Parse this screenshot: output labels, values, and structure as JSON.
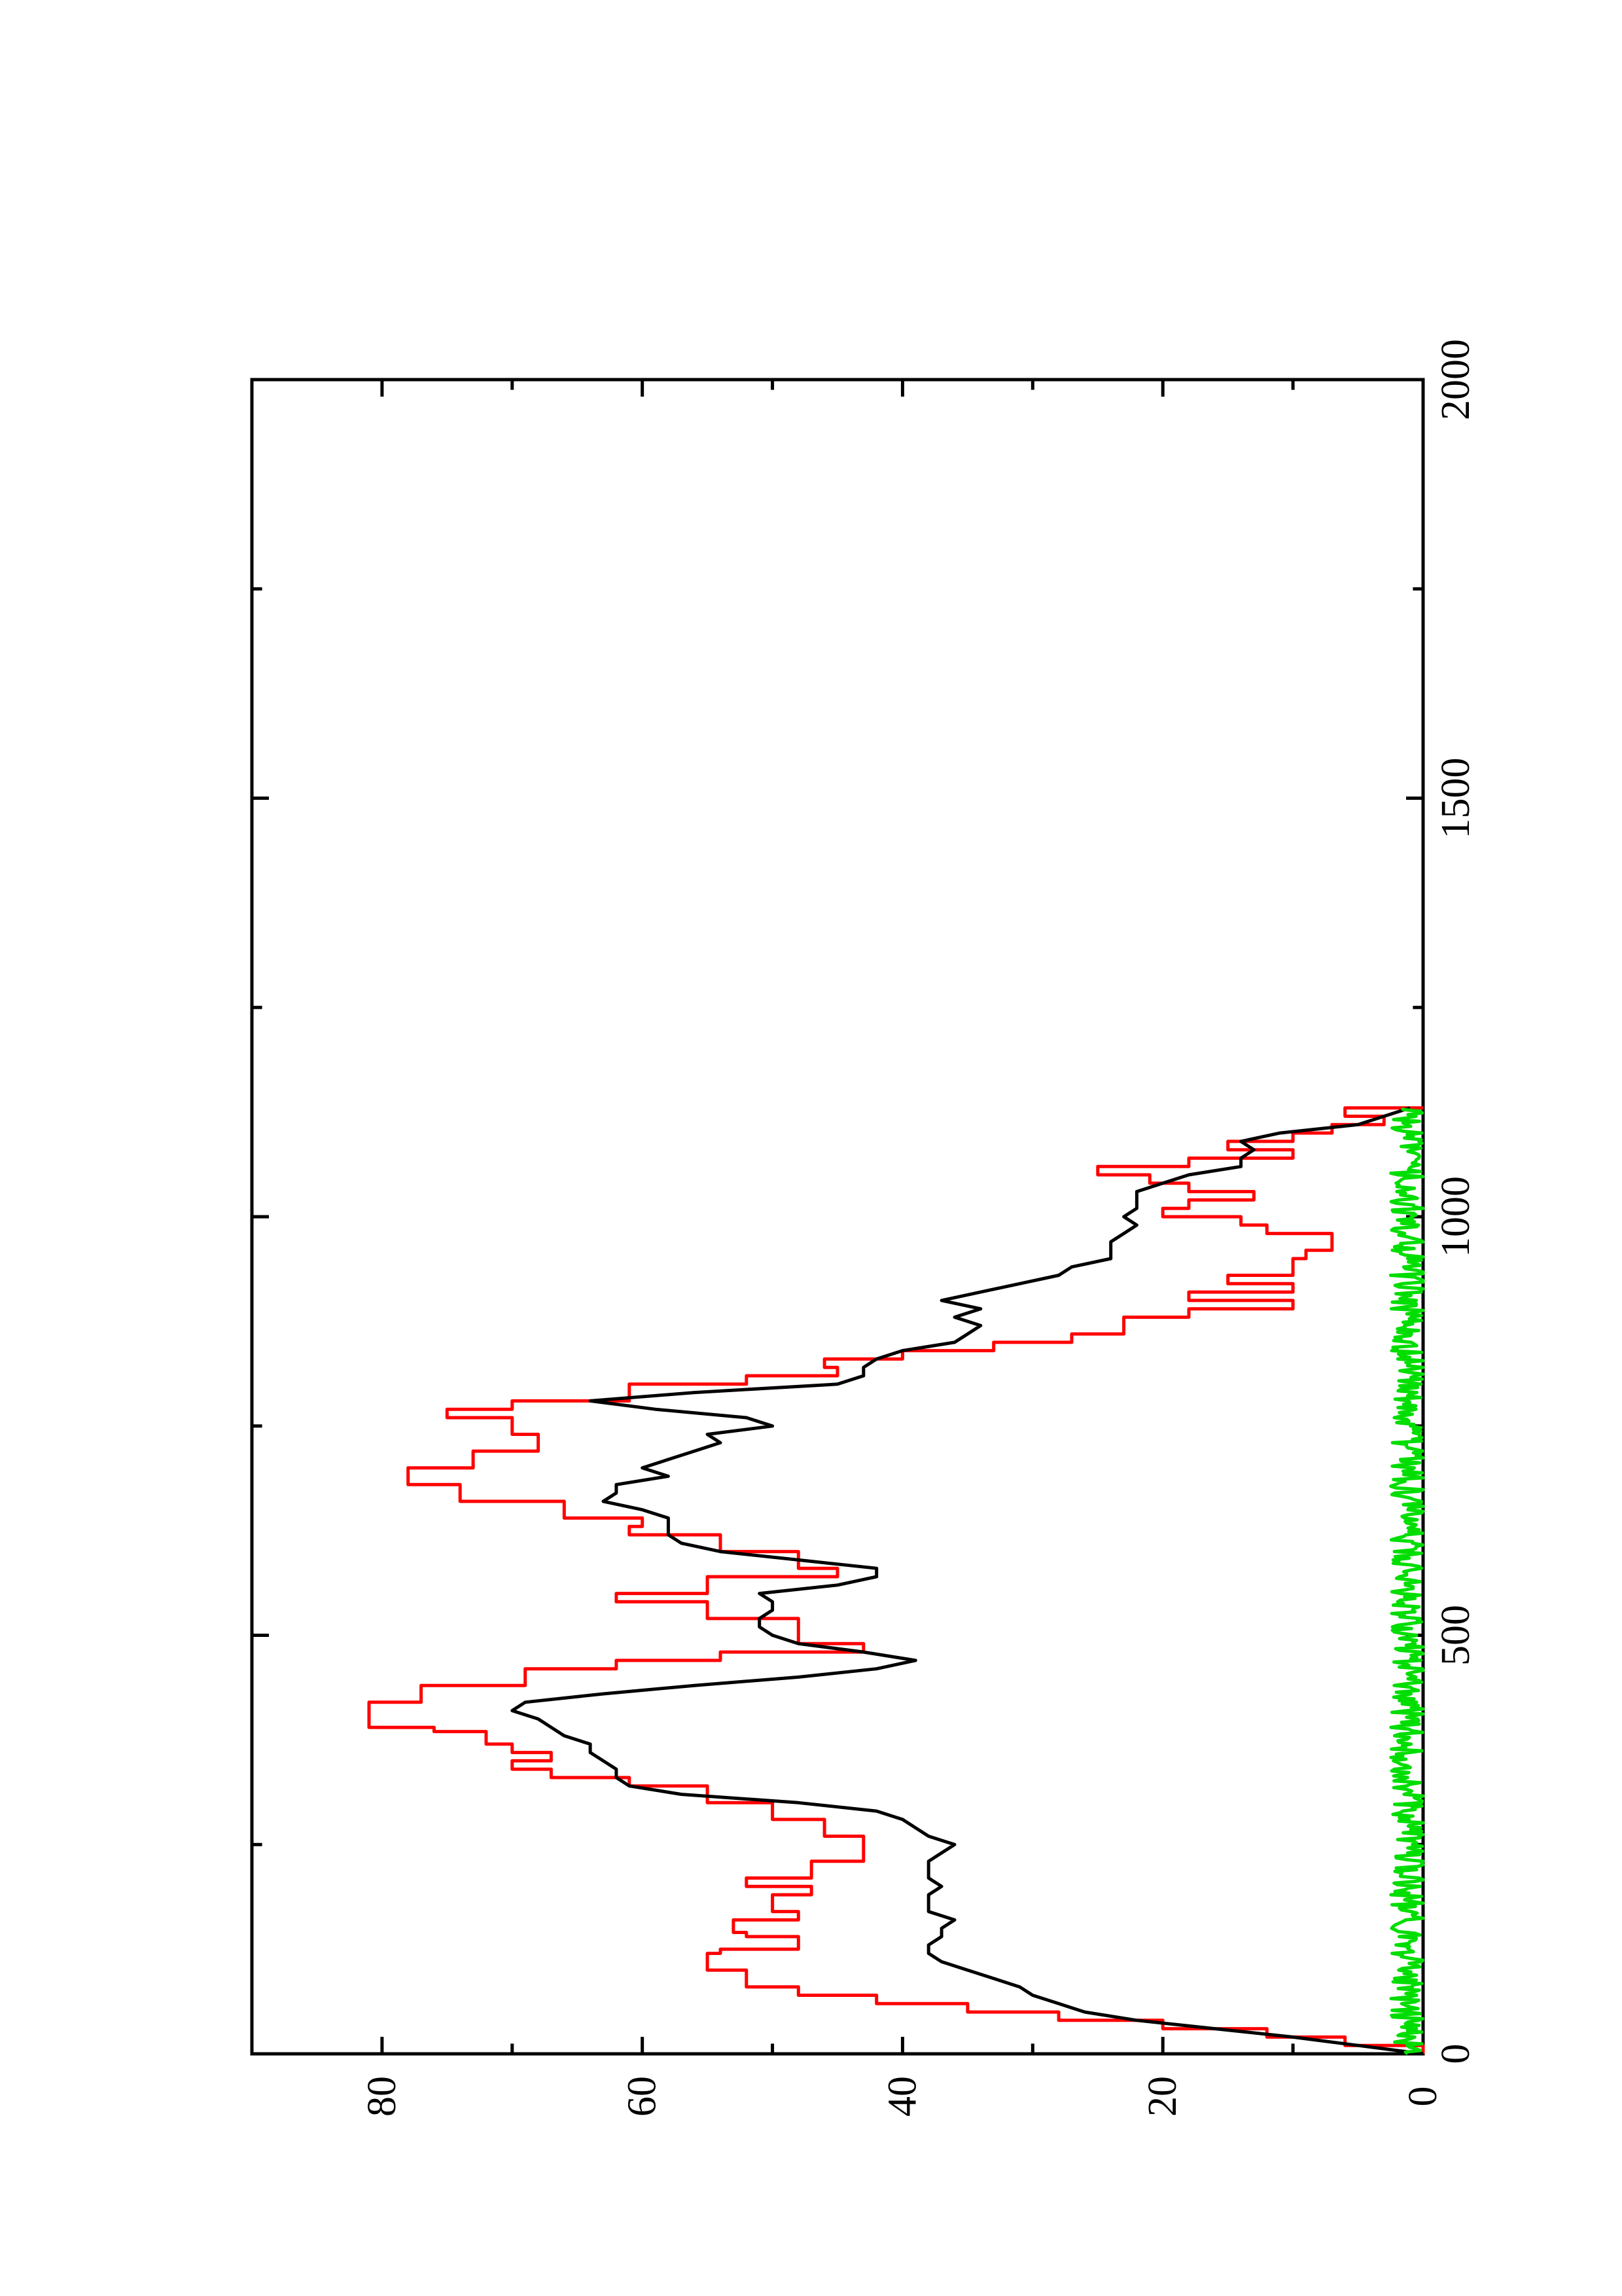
{
  "chart_data": {
    "type": "line",
    "orientation": "rotated 90 degrees counter-clockwise (x axis vertical, y axis horizontal)",
    "title": "",
    "xlabel": "",
    "ylabel": "",
    "xlim": [
      0,
      2000
    ],
    "ylim": [
      0,
      90
    ],
    "x_ticks": [
      "0",
      "500",
      "1000",
      "1500",
      "2000"
    ],
    "y_ticks": [
      "0",
      "20",
      "40",
      "60",
      "80"
    ],
    "grid": false,
    "legend": "none",
    "series": [
      {
        "color": "#ff0000",
        "style": "step",
        "x": [
          0,
          10,
          20,
          30,
          40,
          50,
          60,
          70,
          80,
          100,
          120,
          125,
          140,
          145,
          160,
          170,
          190,
          200,
          210,
          230,
          240,
          260,
          280,
          300,
          320,
          330,
          340,
          350,
          360,
          370,
          385,
          390,
          420,
          440,
          460,
          470,
          480,
          490,
          520,
          540,
          550,
          570,
          580,
          600,
          620,
          630,
          640,
          660,
          680,
          700,
          720,
          740,
          760,
          770,
          780,
          800,
          810,
          820,
          830,
          840,
          850,
          860,
          880,
          890,
          900,
          910,
          920,
          930,
          950,
          960,
          980,
          990,
          1000,
          1010,
          1020,
          1030,
          1040,
          1050,
          1060,
          1070,
          1080,
          1090,
          1100,
          1110,
          1120,
          1130
        ],
        "y": [
          0,
          6,
          12,
          20,
          28,
          35,
          42,
          48,
          52,
          55,
          54,
          48,
          52,
          53,
          48,
          50,
          47,
          52,
          47,
          43,
          43,
          46,
          50,
          55,
          61,
          67,
          70,
          67,
          70,
          72,
          76,
          81,
          77,
          69,
          62,
          54,
          43,
          48,
          55,
          62,
          55,
          45,
          48,
          54,
          61,
          60,
          66,
          74,
          78,
          73,
          68,
          70,
          75,
          70,
          61,
          52,
          45,
          46,
          40,
          33,
          27,
          23,
          18,
          10,
          18,
          10,
          15,
          10,
          9,
          7,
          12,
          14,
          20,
          18,
          13,
          18,
          21,
          25,
          18,
          10,
          15,
          10,
          7,
          3,
          6,
          0
        ]
      },
      {
        "color": "#000000",
        "style": "line",
        "x": [
          0,
          10,
          20,
          30,
          40,
          50,
          60,
          70,
          80,
          90,
          100,
          110,
          120,
          130,
          140,
          150,
          160,
          170,
          180,
          190,
          200,
          210,
          220,
          230,
          240,
          250,
          260,
          270,
          280,
          290,
          300,
          310,
          320,
          330,
          340,
          350,
          360,
          370,
          380,
          390,
          400,
          410,
          420,
          430,
          440,
          450,
          460,
          470,
          480,
          490,
          500,
          510,
          520,
          530,
          540,
          550,
          560,
          570,
          580,
          590,
          600,
          610,
          620,
          630,
          640,
          650,
          660,
          670,
          680,
          690,
          700,
          710,
          720,
          730,
          740,
          750,
          760,
          770,
          780,
          790,
          800,
          810,
          820,
          830,
          840,
          850,
          860,
          870,
          880,
          890,
          900,
          910,
          920,
          930,
          940,
          950,
          960,
          970,
          980,
          990,
          1000,
          1010,
          1020,
          1030,
          1040,
          1050,
          1060,
          1070,
          1080,
          1090,
          1100,
          1110,
          1120,
          1130
        ],
        "y": [
          0,
          5,
          10,
          16,
          22,
          26,
          28,
          30,
          31,
          33,
          35,
          37,
          38,
          38,
          37,
          37,
          36,
          38,
          38,
          38,
          37,
          38,
          38,
          38,
          37,
          36,
          38,
          39,
          40,
          42,
          48,
          57,
          61,
          62,
          62,
          63,
          64,
          64,
          66,
          67,
          68,
          70,
          69,
          63,
          56,
          48,
          42,
          39,
          43,
          48,
          50,
          51,
          51,
          50,
          50,
          51,
          45,
          42,
          42,
          48,
          54,
          57,
          58,
          58,
          58,
          60,
          63,
          62,
          62,
          58,
          60,
          58,
          56,
          54,
          55,
          50,
          52,
          59,
          64,
          56,
          45,
          43,
          43,
          42,
          40,
          36,
          35,
          34,
          36,
          34,
          37,
          34,
          31,
          28,
          27,
          24,
          24,
          24,
          23,
          22,
          23,
          22,
          22,
          22,
          20,
          18,
          14,
          14,
          13,
          14,
          11,
          5,
          3,
          1
        ]
      },
      {
        "color": "#00dd00",
        "style": "line",
        "x_range": [
          0,
          1130
        ],
        "y_mean": 1.2,
        "y_max": 3
      }
    ]
  }
}
